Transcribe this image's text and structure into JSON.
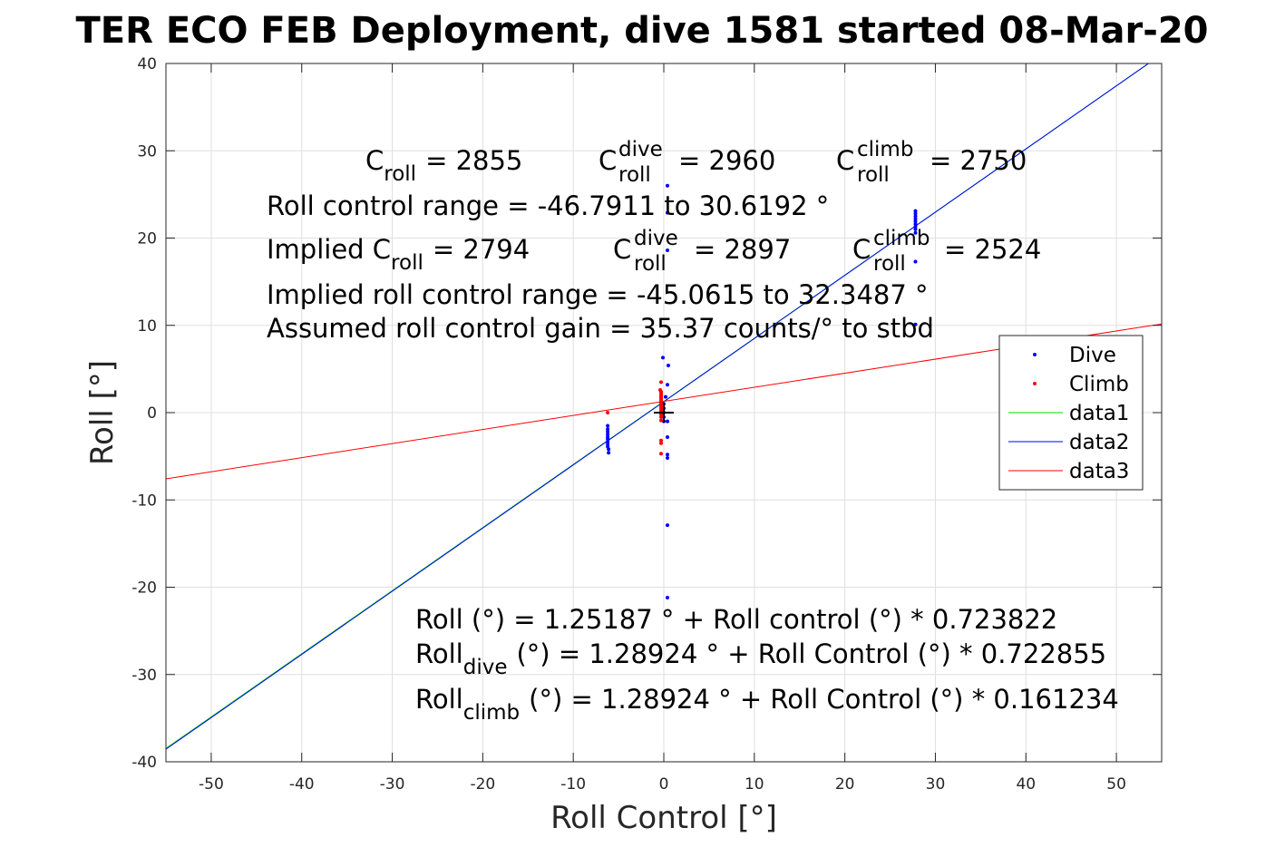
{
  "chart_data": {
    "type": "scatter",
    "title": "TER ECO FEB Deployment, dive 1581 started 08-Mar-20",
    "xlabel": "Roll Control [°]",
    "ylabel": "Roll [°]",
    "xlim": [
      -55,
      55
    ],
    "ylim": [
      -40,
      40
    ],
    "xticks": [
      -50,
      -40,
      -30,
      -20,
      -10,
      0,
      10,
      20,
      30,
      40,
      50
    ],
    "yticks": [
      -40,
      -30,
      -20,
      -10,
      0,
      10,
      20,
      30,
      40
    ],
    "grid": true,
    "legend_position": "right",
    "series": [
      {
        "name": "Dive",
        "kind": "points",
        "color": "#0000ff",
        "points": [
          [
            -6.2,
            -1.5
          ],
          [
            -6.2,
            -1.9
          ],
          [
            -6.2,
            -2.2
          ],
          [
            -6.2,
            -2.5
          ],
          [
            -6.2,
            -2.8
          ],
          [
            -6.2,
            -3.0
          ],
          [
            -6.2,
            -3.3
          ],
          [
            -6.2,
            -3.6
          ],
          [
            -6.2,
            -3.9
          ],
          [
            -6.1,
            -4.2
          ],
          [
            -6.1,
            -4.6
          ],
          [
            0.0,
            0.5
          ],
          [
            0.0,
            0.0
          ],
          [
            0.0,
            1.0
          ],
          [
            0.0,
            -0.5
          ],
          [
            0.2,
            1.8
          ],
          [
            0.0,
            -1.0
          ],
          [
            -0.1,
            6.3
          ],
          [
            0.4,
            26.0
          ],
          [
            0.4,
            22.9
          ],
          [
            0.4,
            18.6
          ],
          [
            0.5,
            5.4
          ],
          [
            0.4,
            3.2
          ],
          [
            0.4,
            -1.0
          ],
          [
            0.4,
            -2.8
          ],
          [
            0.4,
            -4.8
          ],
          [
            0.4,
            -5.2
          ],
          [
            0.4,
            -12.9
          ],
          [
            0.4,
            -21.2
          ],
          [
            27.8,
            20.6
          ],
          [
            27.8,
            21.0
          ],
          [
            27.8,
            21.3
          ],
          [
            27.8,
            21.6
          ],
          [
            27.8,
            21.9
          ],
          [
            27.8,
            22.2
          ],
          [
            27.8,
            22.5
          ],
          [
            27.8,
            22.8
          ],
          [
            27.8,
            23.1
          ],
          [
            27.8,
            17.3
          ],
          [
            27.8,
            10.1
          ]
        ]
      },
      {
        "name": "Climb",
        "kind": "points",
        "color": "#ff0000",
        "points": [
          [
            -6.2,
            0.0
          ],
          [
            -0.4,
            2.6
          ],
          [
            -0.3,
            2.4
          ],
          [
            -0.3,
            2.2
          ],
          [
            -0.3,
            2.0
          ],
          [
            -0.3,
            1.8
          ],
          [
            -0.3,
            1.6
          ],
          [
            -0.3,
            1.4
          ],
          [
            -0.3,
            1.2
          ],
          [
            -0.3,
            1.0
          ],
          [
            -0.3,
            0.8
          ],
          [
            -0.3,
            0.6
          ],
          [
            -0.3,
            0.4
          ],
          [
            -0.3,
            0.2
          ],
          [
            -0.3,
            0.0
          ],
          [
            -0.3,
            -0.2
          ],
          [
            -0.3,
            -0.5
          ],
          [
            -0.3,
            -0.9
          ],
          [
            -0.3,
            3.5
          ],
          [
            -0.3,
            -3.2
          ],
          [
            -0.3,
            -3.5
          ],
          [
            -0.3,
            -4.7
          ]
        ]
      },
      {
        "name": "data1",
        "kind": "line",
        "color": "#00dd00",
        "intercept": 1.28924,
        "slope": 0.722855
      },
      {
        "name": "data2",
        "kind": "line",
        "color": "#0000ff",
        "intercept": 1.25187,
        "slope": 0.723822
      },
      {
        "name": "data3",
        "kind": "line",
        "color": "#ff0000",
        "intercept": 1.28924,
        "slope": 0.161234
      }
    ],
    "marker": {
      "x": 0,
      "y": 0,
      "symbol": "+"
    },
    "annotations": {
      "c_roll": {
        "base": "C",
        "sub": "roll",
        "value": "= 2855"
      },
      "c_roll_dive": {
        "base": "C",
        "sup": "dive",
        "sub": "roll",
        "value": "= 2960"
      },
      "c_roll_climb": {
        "base": "C",
        "sup": "climb",
        "sub": "roll",
        "value": "= 2750"
      },
      "range_line": "Roll control range = -46.7911 to 30.6192 °",
      "implied_prefix": "Implied C",
      "implied_sub": "roll",
      "implied_value": "= 2794",
      "implied_dive": {
        "base": "C",
        "sup": "dive",
        "sub": "roll",
        "value": "= 2897"
      },
      "implied_climb": {
        "base": "C",
        "sup": "climb",
        "sub": "roll",
        "value": "= 2524"
      },
      "implied_range_line": "Implied roll control range = -45.0615 to 32.3487 °",
      "gain_line": "Assumed roll control gain = 35.37 counts/° to stbd",
      "fit_line": "Roll (°) = 1.25187 ° + Roll control (°) * 0.723822",
      "fit_dive": {
        "base": "Roll",
        "sub": "dive",
        "rest": "(°) = 1.28924 ° + Roll Control (°) * 0.722855"
      },
      "fit_climb": {
        "base": "Roll",
        "sub": "climb",
        "rest": "(°) = 1.28924 ° + Roll Control (°) * 0.161234"
      }
    }
  }
}
